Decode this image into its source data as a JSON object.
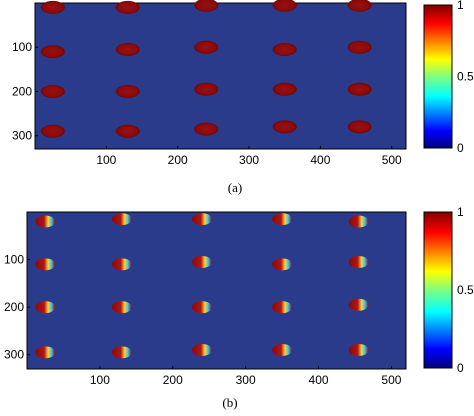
{
  "chart_data": [
    {
      "type": "heatmap",
      "caption": "(a)",
      "xlim": [
        0,
        520
      ],
      "ylim": [
        0,
        330
      ],
      "x_ticks": [
        "100",
        "200",
        "300",
        "400",
        "500"
      ],
      "y_ticks": [
        "100",
        "200",
        "300"
      ],
      "colorbar": {
        "min": 0,
        "max": 1,
        "ticks": [
          "0",
          "0.5",
          "1"
        ]
      },
      "grid": false,
      "blobs": [
        {
          "x": 25,
          "y": 10,
          "v": 1
        },
        {
          "x": 130,
          "y": 10,
          "v": 1
        },
        {
          "x": 240,
          "y": 5,
          "v": 1
        },
        {
          "x": 350,
          "y": 5,
          "v": 1
        },
        {
          "x": 455,
          "y": 5,
          "v": 1
        },
        {
          "x": 25,
          "y": 110,
          "v": 1
        },
        {
          "x": 130,
          "y": 105,
          "v": 1
        },
        {
          "x": 240,
          "y": 100,
          "v": 1
        },
        {
          "x": 350,
          "y": 105,
          "v": 1
        },
        {
          "x": 455,
          "y": 100,
          "v": 1
        },
        {
          "x": 25,
          "y": 200,
          "v": 1
        },
        {
          "x": 130,
          "y": 200,
          "v": 1
        },
        {
          "x": 240,
          "y": 195,
          "v": 1
        },
        {
          "x": 350,
          "y": 195,
          "v": 1
        },
        {
          "x": 455,
          "y": 195,
          "v": 1
        },
        {
          "x": 25,
          "y": 290,
          "v": 1
        },
        {
          "x": 130,
          "y": 290,
          "v": 1
        },
        {
          "x": 240,
          "y": 285,
          "v": 1
        },
        {
          "x": 350,
          "y": 280,
          "v": 1
        },
        {
          "x": 455,
          "y": 280,
          "v": 1
        }
      ]
    },
    {
      "type": "heatmap",
      "caption": "(b)",
      "xlim": [
        0,
        520
      ],
      "ylim": [
        0,
        330
      ],
      "x_ticks": [
        "100",
        "200",
        "300",
        "400",
        "500"
      ],
      "y_ticks": [
        "100",
        "200",
        "300"
      ],
      "colorbar": {
        "min": 0,
        "max": 1,
        "ticks": [
          "0",
          "0.50",
          "1"
        ]
      },
      "grid": false,
      "blobs": [
        {
          "x": 25,
          "y": 20,
          "v": 0.55
        },
        {
          "x": 130,
          "y": 15,
          "v": 0.55
        },
        {
          "x": 240,
          "y": 15,
          "v": 0.55
        },
        {
          "x": 350,
          "y": 15,
          "v": 0.55
        },
        {
          "x": 455,
          "y": 20,
          "v": 0.55
        },
        {
          "x": 25,
          "y": 110,
          "v": 0.55
        },
        {
          "x": 130,
          "y": 110,
          "v": 0.55
        },
        {
          "x": 240,
          "y": 105,
          "v": 0.55
        },
        {
          "x": 350,
          "y": 110,
          "v": 0.55
        },
        {
          "x": 455,
          "y": 105,
          "v": 0.55
        },
        {
          "x": 25,
          "y": 200,
          "v": 0.55
        },
        {
          "x": 130,
          "y": 200,
          "v": 0.55
        },
        {
          "x": 240,
          "y": 200,
          "v": 0.55
        },
        {
          "x": 350,
          "y": 200,
          "v": 0.55
        },
        {
          "x": 455,
          "y": 195,
          "v": 0.55
        },
        {
          "x": 25,
          "y": 295,
          "v": 0.55
        },
        {
          "x": 130,
          "y": 295,
          "v": 0.55
        },
        {
          "x": 240,
          "y": 290,
          "v": 0.55
        },
        {
          "x": 350,
          "y": 290,
          "v": 0.55
        },
        {
          "x": 455,
          "y": 290,
          "v": 0.55
        }
      ]
    }
  ]
}
